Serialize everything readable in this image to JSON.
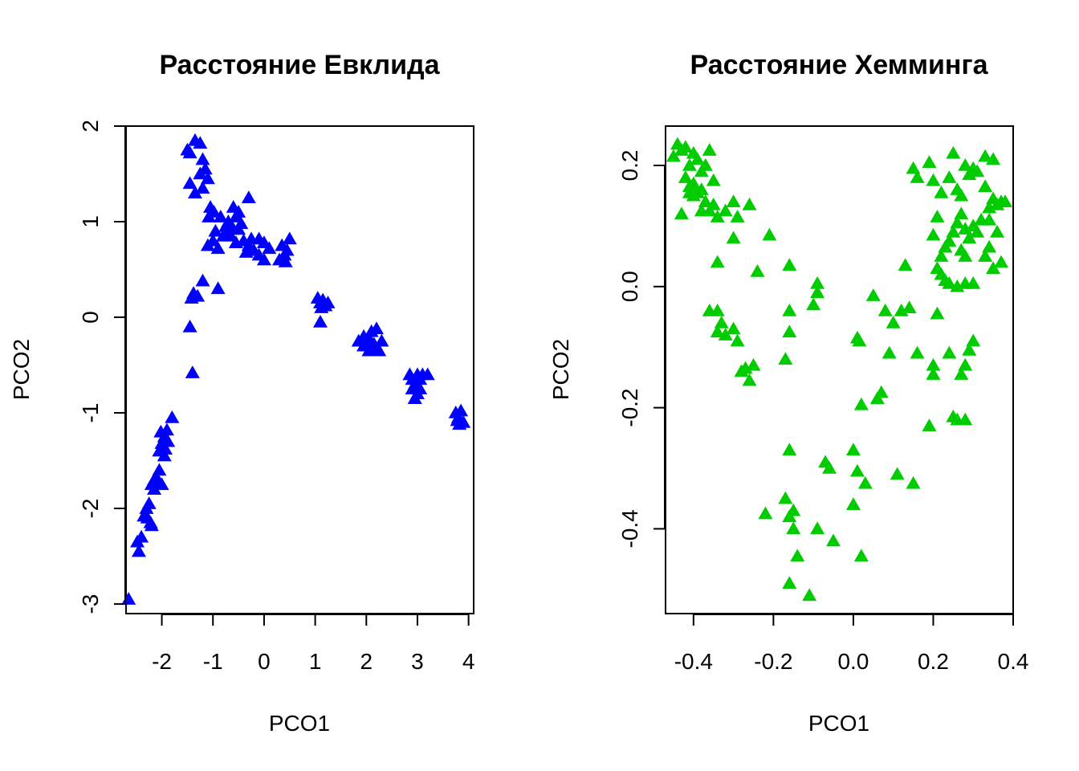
{
  "chart_data": [
    {
      "type": "scatter",
      "title": "Расстояние Евклида",
      "xlabel": "PCO1",
      "ylabel": "PCO2",
      "xlim": [
        -2.7,
        4.1
      ],
      "ylim": [
        -3.1,
        2.0
      ],
      "xticks": [
        -2,
        -1,
        0,
        1,
        2,
        3,
        4
      ],
      "yticks": [
        -3,
        -2,
        -1,
        0,
        1,
        2
      ],
      "xtick_labels": [
        "-2",
        "-1",
        "0",
        "1",
        "2",
        "3",
        "4"
      ],
      "ytick_labels": [
        "-3",
        "-2",
        "-1",
        "0",
        "1",
        "2"
      ],
      "grid": false,
      "marker": "triangle",
      "color": "#0000ff",
      "points": [
        [
          -2.65,
          -2.95
        ],
        [
          -2.45,
          -2.45
        ],
        [
          -2.48,
          -2.35
        ],
        [
          -2.4,
          -2.3
        ],
        [
          -2.35,
          -2.08
        ],
        [
          -2.3,
          -2.0
        ],
        [
          -2.25,
          -1.95
        ],
        [
          -2.22,
          -2.15
        ],
        [
          -2.28,
          -2.1
        ],
        [
          -2.2,
          -2.18
        ],
        [
          -2.2,
          -1.75
        ],
        [
          -2.15,
          -1.7
        ],
        [
          -2.1,
          -1.68
        ],
        [
          -2.05,
          -1.6
        ],
        [
          -2.15,
          -1.8
        ],
        [
          -2.08,
          -1.72
        ],
        [
          -2.0,
          -1.75
        ],
        [
          -2.05,
          -1.4
        ],
        [
          -2.0,
          -1.32
        ],
        [
          -1.95,
          -1.25
        ],
        [
          -1.9,
          -1.18
        ],
        [
          -2.02,
          -1.2
        ],
        [
          -1.93,
          -1.38
        ],
        [
          -1.88,
          -1.3
        ],
        [
          -1.8,
          -1.05
        ],
        [
          -1.95,
          -1.45
        ],
        [
          -1.4,
          -0.58
        ],
        [
          -1.45,
          -0.1
        ],
        [
          -1.38,
          0.25
        ],
        [
          -1.3,
          0.22
        ],
        [
          -1.2,
          0.38
        ],
        [
          -1.42,
          0.2
        ],
        [
          -0.9,
          0.3
        ],
        [
          -1.1,
          0.75
        ],
        [
          -1.0,
          0.8
        ],
        [
          -0.9,
          0.72
        ],
        [
          -0.8,
          0.85
        ],
        [
          -0.95,
          0.9
        ],
        [
          -0.75,
          0.95
        ],
        [
          -0.7,
          1.0
        ],
        [
          -0.6,
          0.92
        ],
        [
          -0.55,
          1.05
        ],
        [
          -0.5,
          1.1
        ],
        [
          -0.45,
          0.98
        ],
        [
          -0.6,
          1.15
        ],
        [
          -0.65,
          0.85
        ],
        [
          -0.85,
          1.05
        ],
        [
          -0.4,
          0.8
        ],
        [
          -0.3,
          0.75
        ],
        [
          -0.2,
          0.7
        ],
        [
          -0.1,
          0.65
        ],
        [
          0.0,
          0.6
        ],
        [
          -0.35,
          0.68
        ],
        [
          -0.25,
          0.82
        ],
        [
          -0.3,
          1.25
        ],
        [
          -0.1,
          0.82
        ],
        [
          0.0,
          0.78
        ],
        [
          0.1,
          0.72
        ],
        [
          0.3,
          0.6
        ],
        [
          0.4,
          0.65
        ],
        [
          0.45,
          0.7
        ],
        [
          0.5,
          0.82
        ],
        [
          0.35,
          0.75
        ],
        [
          0.42,
          0.58
        ],
        [
          -1.5,
          1.75
        ],
        [
          -1.45,
          1.72
        ],
        [
          -1.35,
          1.85
        ],
        [
          -1.25,
          1.82
        ],
        [
          -1.2,
          1.65
        ],
        [
          -1.15,
          1.55
        ],
        [
          -1.25,
          1.5
        ],
        [
          -1.1,
          1.45
        ],
        [
          -1.2,
          1.35
        ],
        [
          -1.45,
          1.4
        ],
        [
          -1.35,
          1.3
        ],
        [
          -1.05,
          1.15
        ],
        [
          -1.08,
          1.05
        ],
        [
          -0.98,
          1.1
        ],
        [
          -0.7,
          0.88
        ],
        [
          -0.55,
          0.78
        ],
        [
          -0.5,
          0.92
        ],
        [
          1.05,
          0.2
        ],
        [
          1.1,
          0.15
        ],
        [
          1.15,
          0.18
        ],
        [
          1.2,
          0.12
        ],
        [
          1.25,
          0.15
        ],
        [
          1.12,
          0.1
        ],
        [
          1.1,
          -0.05
        ],
        [
          1.85,
          -0.25
        ],
        [
          1.95,
          -0.2
        ],
        [
          2.0,
          -0.3
        ],
        [
          2.05,
          -0.22
        ],
        [
          2.1,
          -0.15
        ],
        [
          2.15,
          -0.28
        ],
        [
          2.2,
          -0.12
        ],
        [
          2.25,
          -0.35
        ],
        [
          2.1,
          -0.32
        ],
        [
          1.95,
          -0.3
        ],
        [
          2.3,
          -0.25
        ],
        [
          2.05,
          -0.35
        ],
        [
          2.85,
          -0.6
        ],
        [
          2.9,
          -0.65
        ],
        [
          2.95,
          -0.7
        ],
        [
          3.0,
          -0.6
        ],
        [
          3.05,
          -0.75
        ],
        [
          3.1,
          -0.6
        ],
        [
          3.2,
          -0.6
        ],
        [
          2.95,
          -0.85
        ],
        [
          3.0,
          -0.8
        ],
        [
          2.9,
          -0.75
        ],
        [
          3.05,
          -0.65
        ],
        [
          3.75,
          -1.0
        ],
        [
          3.8,
          -1.05
        ],
        [
          3.85,
          -0.98
        ],
        [
          3.9,
          -1.1
        ],
        [
          3.82,
          -1.12
        ],
        [
          3.78,
          -1.08
        ]
      ]
    },
    {
      "type": "scatter",
      "title": "Расстояние Хемминга",
      "xlabel": "PCO1",
      "ylabel": "PCO2",
      "xlim": [
        -0.47,
        0.4
      ],
      "ylim": [
        -0.54,
        0.265
      ],
      "xticks": [
        -0.4,
        -0.2,
        0.0,
        0.2,
        0.4
      ],
      "yticks": [
        -0.4,
        -0.2,
        0.0,
        0.2
      ],
      "xtick_labels": [
        "-0.4",
        "-0.2",
        "0.0",
        "0.2",
        "0.4"
      ],
      "ytick_labels": [
        "-0.4",
        "-0.2",
        "0.0",
        "0.2"
      ],
      "grid": false,
      "marker": "triangle",
      "color": "#00cc00",
      "points": [
        [
          -0.45,
          0.215
        ],
        [
          -0.44,
          0.235
        ],
        [
          -0.43,
          0.225
        ],
        [
          -0.42,
          0.23
        ],
        [
          -0.41,
          0.2
        ],
        [
          -0.4,
          0.22
        ],
        [
          -0.39,
          0.21
        ],
        [
          -0.38,
          0.19
        ],
        [
          -0.42,
          0.18
        ],
        [
          -0.41,
          0.165
        ],
        [
          -0.4,
          0.17
        ],
        [
          -0.39,
          0.155
        ],
        [
          -0.38,
          0.16
        ],
        [
          -0.37,
          0.2
        ],
        [
          -0.36,
          0.225
        ],
        [
          -0.35,
          0.175
        ],
        [
          -0.41,
          0.155
        ],
        [
          -0.4,
          0.15
        ],
        [
          -0.43,
          0.12
        ],
        [
          -0.38,
          0.125
        ],
        [
          -0.37,
          0.14
        ],
        [
          -0.36,
          0.125
        ],
        [
          -0.35,
          0.135
        ],
        [
          -0.34,
          0.115
        ],
        [
          -0.32,
          0.125
        ],
        [
          -0.3,
          0.14
        ],
        [
          -0.29,
          0.115
        ],
        [
          -0.26,
          0.135
        ],
        [
          -0.3,
          0.08
        ],
        [
          -0.21,
          0.085
        ],
        [
          -0.34,
          0.04
        ],
        [
          -0.24,
          0.025
        ],
        [
          -0.16,
          0.035
        ],
        [
          -0.36,
          -0.04
        ],
        [
          -0.34,
          -0.04
        ],
        [
          -0.33,
          -0.06
        ],
        [
          -0.34,
          -0.075
        ],
        [
          -0.32,
          -0.08
        ],
        [
          -0.3,
          -0.07
        ],
        [
          -0.29,
          -0.09
        ],
        [
          -0.28,
          -0.14
        ],
        [
          -0.27,
          -0.135
        ],
        [
          -0.26,
          -0.155
        ],
        [
          -0.25,
          -0.13
        ],
        [
          -0.16,
          -0.04
        ],
        [
          -0.16,
          -0.075
        ],
        [
          -0.17,
          -0.12
        ],
        [
          -0.1,
          -0.03
        ],
        [
          -0.09,
          0.005
        ],
        [
          -0.09,
          -0.01
        ],
        [
          -0.16,
          -0.27
        ],
        [
          -0.17,
          -0.35
        ],
        [
          -0.16,
          -0.38
        ],
        [
          -0.15,
          -0.37
        ],
        [
          -0.15,
          -0.4
        ],
        [
          -0.22,
          -0.375
        ],
        [
          -0.14,
          -0.445
        ],
        [
          -0.16,
          -0.49
        ],
        [
          -0.11,
          -0.51
        ],
        [
          -0.09,
          -0.4
        ],
        [
          -0.05,
          -0.42
        ],
        [
          -0.07,
          -0.29
        ],
        [
          -0.06,
          -0.3
        ],
        [
          0.0,
          -0.27
        ],
        [
          0.01,
          -0.305
        ],
        [
          0.03,
          -0.325
        ],
        [
          0.0,
          -0.36
        ],
        [
          0.02,
          -0.445
        ],
        [
          0.02,
          -0.195
        ],
        [
          0.06,
          -0.185
        ],
        [
          0.07,
          -0.175
        ],
        [
          0.01,
          -0.085
        ],
        [
          0.015,
          -0.09
        ],
        [
          0.05,
          -0.015
        ],
        [
          0.08,
          -0.04
        ],
        [
          0.1,
          -0.06
        ],
        [
          0.12,
          -0.04
        ],
        [
          0.14,
          -0.035
        ],
        [
          0.13,
          0.035
        ],
        [
          0.09,
          -0.11
        ],
        [
          0.16,
          -0.11
        ],
        [
          0.2,
          -0.13
        ],
        [
          0.2,
          -0.145
        ],
        [
          0.19,
          -0.23
        ],
        [
          0.21,
          -0.045
        ],
        [
          0.24,
          -0.11
        ],
        [
          0.25,
          -0.215
        ],
        [
          0.26,
          -0.22
        ],
        [
          0.28,
          -0.22
        ],
        [
          0.28,
          -0.13
        ],
        [
          0.27,
          -0.145
        ],
        [
          0.3,
          -0.09
        ],
        [
          0.29,
          -0.105
        ],
        [
          0.11,
          -0.31
        ],
        [
          0.15,
          -0.325
        ],
        [
          0.15,
          0.195
        ],
        [
          0.19,
          0.205
        ],
        [
          0.16,
          0.18
        ],
        [
          0.2,
          0.175
        ],
        [
          0.21,
          0.115
        ],
        [
          0.22,
          0.155
        ],
        [
          0.24,
          0.18
        ],
        [
          0.26,
          0.16
        ],
        [
          0.25,
          0.22
        ],
        [
          0.27,
          0.15
        ],
        [
          0.28,
          0.2
        ],
        [
          0.29,
          0.185
        ],
        [
          0.3,
          0.195
        ],
        [
          0.31,
          0.19
        ],
        [
          0.33,
          0.215
        ],
        [
          0.35,
          0.21
        ],
        [
          0.33,
          0.165
        ],
        [
          0.34,
          0.13
        ],
        [
          0.35,
          0.145
        ],
        [
          0.36,
          0.135
        ],
        [
          0.37,
          0.14
        ],
        [
          0.38,
          0.14
        ],
        [
          0.34,
          0.11
        ],
        [
          0.32,
          0.11
        ],
        [
          0.31,
          0.09
        ],
        [
          0.3,
          0.1
        ],
        [
          0.29,
          0.08
        ],
        [
          0.28,
          0.095
        ],
        [
          0.27,
          0.12
        ],
        [
          0.26,
          0.105
        ],
        [
          0.25,
          0.09
        ],
        [
          0.24,
          0.075
        ],
        [
          0.23,
          0.065
        ],
        [
          0.22,
          0.05
        ],
        [
          0.21,
          0.03
        ],
        [
          0.22,
          0.02
        ],
        [
          0.23,
          0.01
        ],
        [
          0.24,
          0.005
        ],
        [
          0.27,
          0.06
        ],
        [
          0.28,
          0.05
        ],
        [
          0.33,
          0.05
        ],
        [
          0.34,
          0.065
        ],
        [
          0.35,
          0.03
        ],
        [
          0.37,
          0.04
        ],
        [
          0.3,
          0.005
        ],
        [
          0.28,
          0.005
        ],
        [
          0.26,
          0.0
        ],
        [
          0.36,
          0.09
        ],
        [
          0.2,
          0.085
        ]
      ]
    }
  ]
}
